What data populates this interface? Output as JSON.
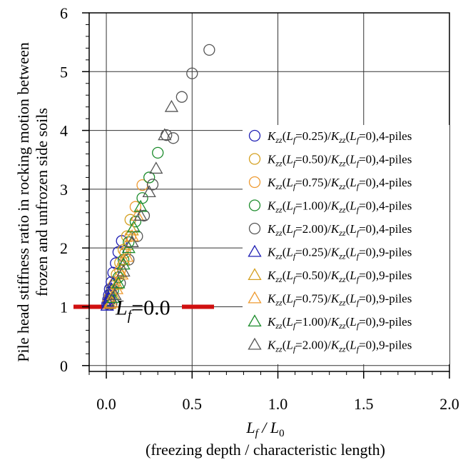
{
  "chart_data": {
    "type": "scatter",
    "ylabel_lines": [
      "Pile head stiffness ratio in rocking motion between",
      "frozen and unfrozen side soils"
    ],
    "xlabel": {
      "main": "L",
      "sub": "f",
      "rest": " / L",
      "sub2": "0"
    },
    "xlabel_note": "(freezing depth / characteristic length)",
    "xlim": [
      -0.1,
      2.0
    ],
    "ylim": [
      -0.1,
      6.0
    ],
    "x_ticks": [
      0.0,
      0.5,
      1.0,
      1.5,
      2.0
    ],
    "x_tick_labels": [
      "0.0",
      "0.5",
      "1.0",
      "1.5",
      "2.0"
    ],
    "y_ticks": [
      0,
      1,
      2,
      3,
      4,
      5,
      6
    ],
    "y_tick_labels": [
      "0",
      "1",
      "2",
      "3",
      "4",
      "5",
      "6"
    ],
    "grid": true,
    "legend_placement": "right",
    "annotation": {
      "text_main": "L",
      "text_sub": "f",
      "text_rest": "=0.0",
      "y": 1.0
    },
    "reference_line_color": "#d01010",
    "series": [
      {
        "name": "Kzz(Lf=0.25)/Kzz(Lf=0),4-piles",
        "Lf": "0.25",
        "piles": "4",
        "marker": "circle",
        "color": "#1f1fb4",
        "x": [
          0.005,
          0.01,
          0.015,
          0.02,
          0.03,
          0.04,
          0.055,
          0.07,
          0.09
        ],
        "y": [
          1.05,
          1.12,
          1.2,
          1.3,
          1.42,
          1.58,
          1.74,
          1.93,
          2.12
        ]
      },
      {
        "name": "Kzz(Lf=0.50)/Kzz(Lf=0),4-piles",
        "Lf": "0.50",
        "piles": "4",
        "marker": "circle",
        "color": "#d4a020",
        "x": [
          0.01,
          0.02,
          0.04,
          0.06,
          0.08,
          0.1,
          0.12,
          0.14
        ],
        "y": [
          1.08,
          1.17,
          1.35,
          1.55,
          1.75,
          1.97,
          2.2,
          2.48
        ]
      },
      {
        "name": "Kzz(Lf=0.75)/Kzz(Lf=0),4-piles",
        "Lf": "0.75",
        "piles": "4",
        "marker": "circle",
        "color": "#ee9a30",
        "x": [
          0.015,
          0.03,
          0.05,
          0.08,
          0.11,
          0.14,
          0.17,
          0.21
        ],
        "y": [
          1.1,
          1.22,
          1.4,
          1.62,
          1.92,
          2.2,
          2.7,
          3.07
        ]
      },
      {
        "name": "Kzz(Lf=1.00)/Kzz(Lf=0),4-piles",
        "Lf": "1.00",
        "piles": "4",
        "marker": "circle",
        "color": "#1c8c2c",
        "x": [
          0.02,
          0.04,
          0.07,
          0.1,
          0.13,
          0.17,
          0.21,
          0.25,
          0.3
        ],
        "y": [
          1.1,
          1.28,
          1.5,
          1.8,
          2.1,
          2.45,
          2.85,
          3.2,
          3.62
        ]
      },
      {
        "name": "Kzz(Lf=2.00)/Kzz(Lf=0),4-piles",
        "Lf": "2.00",
        "piles": "4",
        "marker": "circle",
        "color": "#555555",
        "x": [
          0.03,
          0.08,
          0.13,
          0.18,
          0.22,
          0.27,
          0.35,
          0.39,
          0.44,
          0.5,
          0.6
        ],
        "y": [
          1.05,
          1.4,
          1.8,
          2.2,
          2.55,
          3.08,
          3.92,
          3.87,
          4.57,
          4.97,
          5.37
        ]
      },
      {
        "name": "Kzz(Lf=0.25)/Kzz(Lf=0),9-piles",
        "Lf": "0.25",
        "piles": "9",
        "marker": "triangle",
        "color": "#1f1fb4",
        "x": [
          0.005,
          0.01,
          0.015,
          0.02,
          0.03,
          0.04
        ],
        "y": [
          1.02,
          1.08,
          1.14,
          1.2,
          1.3,
          1.4
        ]
      },
      {
        "name": "Kzz(Lf=0.50)/Kzz(Lf=0),9-piles",
        "Lf": "0.50",
        "piles": "9",
        "marker": "triangle",
        "color": "#d4a020",
        "x": [
          0.02,
          0.04,
          0.06,
          0.08,
          0.1,
          0.12,
          0.15
        ],
        "y": [
          1.05,
          1.2,
          1.38,
          1.58,
          1.8,
          2.05,
          2.3
        ]
      },
      {
        "name": "Kzz(Lf=0.75)/Kzz(Lf=0),9-piles",
        "Lf": "0.75",
        "piles": "9",
        "marker": "triangle",
        "color": "#ee9a30",
        "x": [
          0.03,
          0.06,
          0.09,
          0.12,
          0.15,
          0.18
        ],
        "y": [
          1.07,
          1.3,
          1.55,
          1.85,
          2.2,
          2.55
        ]
      },
      {
        "name": "Kzz(Lf=1.00)/Kzz(Lf=0),9-piles",
        "Lf": "1.00",
        "piles": "9",
        "marker": "triangle",
        "color": "#1c8c2c",
        "x": [
          0.04,
          0.07,
          0.1,
          0.13,
          0.16,
          0.2
        ],
        "y": [
          1.15,
          1.4,
          1.72,
          2.0,
          2.35,
          2.7
        ]
      },
      {
        "name": "Kzz(Lf=2.00)/Kzz(Lf=0),9-piles",
        "Lf": "2.00",
        "piles": "9",
        "marker": "triangle",
        "color": "#555555",
        "x": [
          0.05,
          0.1,
          0.15,
          0.2,
          0.25,
          0.29,
          0.34,
          0.38
        ],
        "y": [
          1.2,
          1.6,
          2.1,
          2.55,
          2.95,
          3.35,
          3.92,
          4.4
        ]
      }
    ]
  }
}
